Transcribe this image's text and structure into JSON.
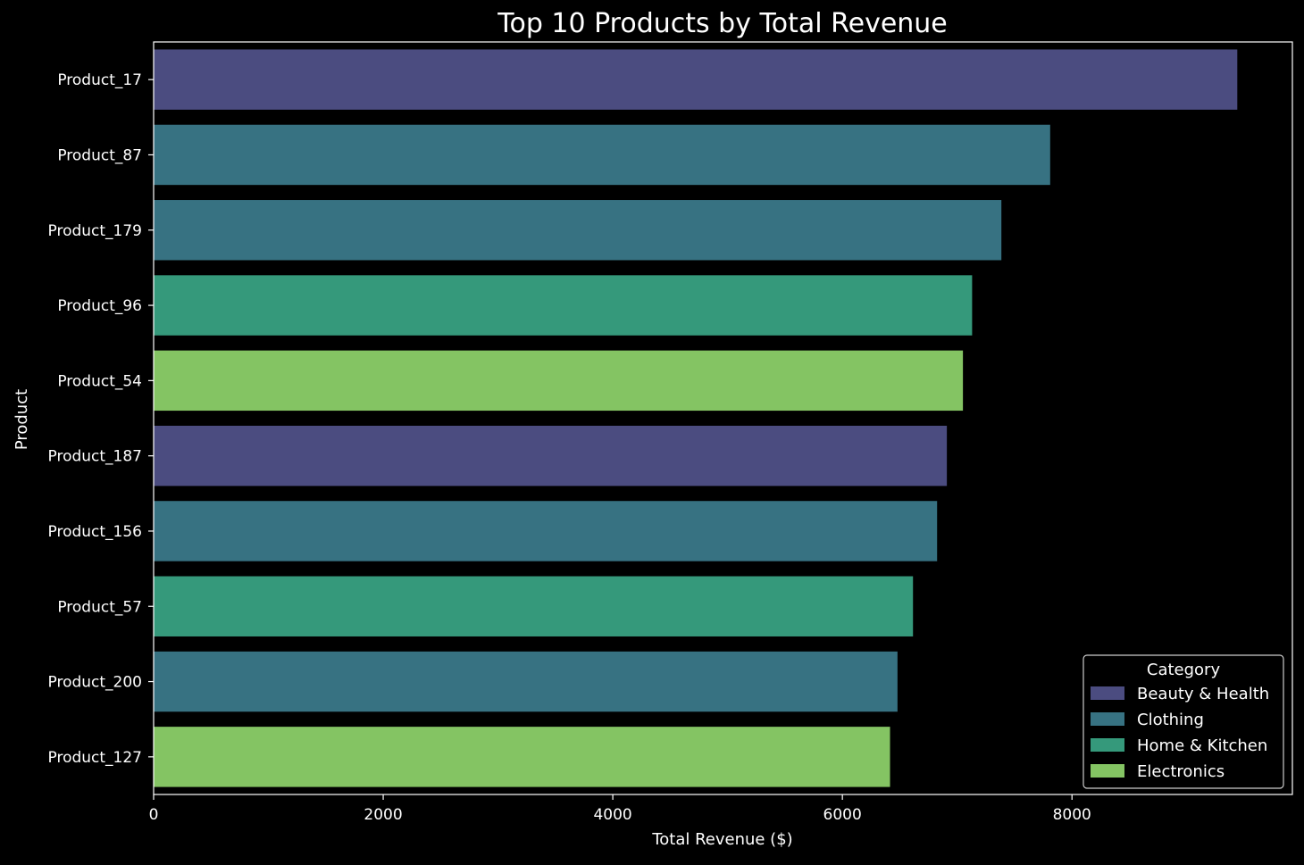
{
  "chart_data": {
    "type": "bar",
    "orientation": "horizontal",
    "title": "Top 10 Products by Total Revenue",
    "xlabel": "Total Revenue ($)",
    "ylabel": "Product",
    "xlim": [
      0,
      9920
    ],
    "xticks": [
      0,
      2000,
      4000,
      6000,
      8000
    ],
    "grid": false,
    "categories": [
      "Product_17",
      "Product_87",
      "Product_179",
      "Product_96",
      "Product_54",
      "Product_187",
      "Product_156",
      "Product_57",
      "Product_200",
      "Product_127"
    ],
    "values": [
      9440,
      7810,
      7385,
      7130,
      7050,
      6910,
      6825,
      6615,
      6480,
      6415
    ],
    "bar_categories": [
      "Beauty & Health",
      "Clothing",
      "Clothing",
      "Home & Kitchen",
      "Electronics",
      "Beauty & Health",
      "Clothing",
      "Home & Kitchen",
      "Clothing",
      "Electronics"
    ],
    "legend": {
      "title": "Category",
      "placement": "lower-right",
      "entries": [
        {
          "label": "Beauty & Health",
          "color": "#4b4c80"
        },
        {
          "label": "Clothing",
          "color": "#377282"
        },
        {
          "label": "Home & Kitchen",
          "color": "#35997b"
        },
        {
          "label": "Electronics",
          "color": "#84c463"
        }
      ]
    },
    "colors": {
      "background": "#000000",
      "axes": "#ffffff",
      "text": "#ffffff"
    }
  }
}
